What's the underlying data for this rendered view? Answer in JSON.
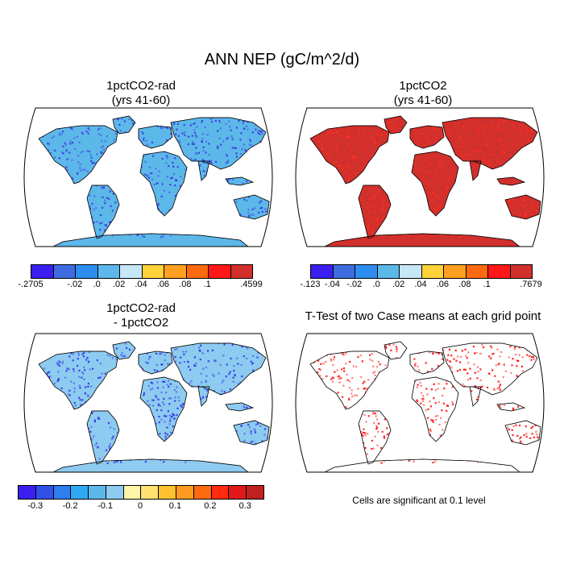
{
  "title": "ANN NEP (gC/m^2/d)",
  "panels": [
    {
      "id": "p1",
      "title": "1pctCO2-rad\n(yrs 41-60)",
      "fill": "#5db8ea",
      "accent": "#3a2fe0"
    },
    {
      "id": "p2",
      "title": "1pctCO2\n(yrs 41-60)",
      "fill": "#d2302c",
      "accent": "#ff3020"
    },
    {
      "id": "p3",
      "title": "1pctCO2-rad\n- 1pctCO2",
      "fill": "#8ecbf0",
      "accent": "#2a2aee"
    },
    {
      "id": "p4",
      "title": "T-Test of two Case means at each grid point",
      "fill": "#ffffff",
      "accent": "#ff0000"
    }
  ],
  "colorbars": [
    {
      "id": "cb1",
      "colors": [
        "#3a1ff0",
        "#3f6ce0",
        "#2e8ef0",
        "#5db8ea",
        "#c7e6f8",
        "#ffd23a",
        "#ffa020",
        "#ff6a10",
        "#ff1818",
        "#d2302c"
      ],
      "labels": [
        "-.2705",
        "-.02",
        ".0",
        ".02",
        ".04",
        ".06",
        ".08",
        ".1",
        ".4599"
      ]
    },
    {
      "id": "cb2",
      "colors": [
        "#3a1ff0",
        "#3f6ce0",
        "#2e8ef0",
        "#5db8ea",
        "#c7e6f8",
        "#ffd23a",
        "#ffa020",
        "#ff6a10",
        "#ff1818",
        "#d2302c"
      ],
      "labels": [
        "-.123",
        "-.04",
        "-.02",
        ".0",
        ".02",
        ".04",
        ".06",
        ".08",
        ".1",
        ".7679"
      ]
    },
    {
      "id": "cb3",
      "colors": [
        "#3a1ff0",
        "#3050e8",
        "#2e7ef0",
        "#2fa8f5",
        "#5db8ea",
        "#8ecbf0",
        "#fff5a8",
        "#ffe070",
        "#ffc030",
        "#ff9a20",
        "#ff6a10",
        "#ff2a10",
        "#e01818",
        "#c02020"
      ],
      "labels": [
        "-0.3",
        "-0.2",
        "-0.1",
        "0",
        "0.1",
        "0.2",
        "0.3"
      ]
    }
  ],
  "note": "Cells are significant at 0.1 level"
}
